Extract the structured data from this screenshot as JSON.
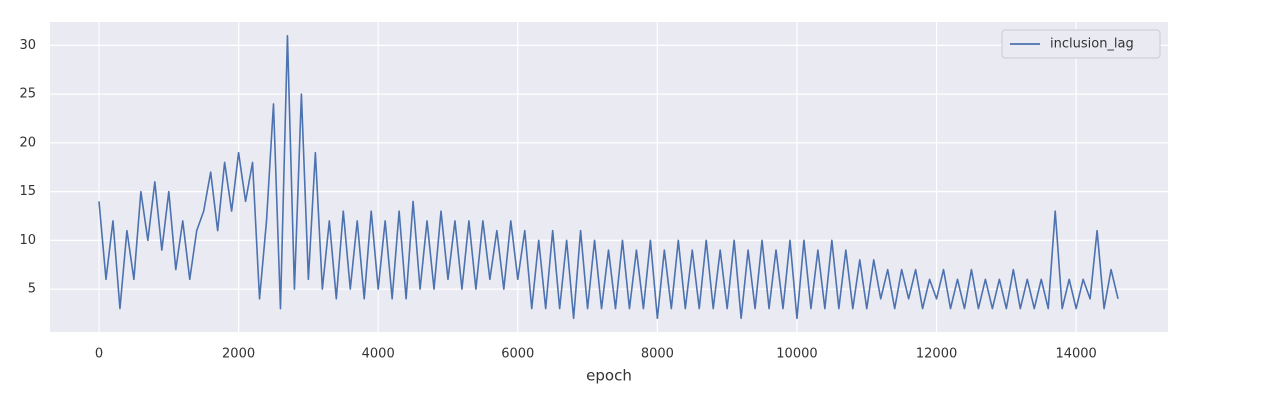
{
  "chart_data": {
    "type": "line",
    "x_label": "epoch",
    "x": [
      0,
      100,
      200,
      300,
      400,
      500,
      600,
      700,
      800,
      900,
      1000,
      1100,
      1200,
      1300,
      1400,
      1500,
      1600,
      1700,
      1800,
      1900,
      2000,
      2100,
      2200,
      2300,
      2400,
      2500,
      2600,
      2700,
      2800,
      2900,
      3000,
      3100,
      3200,
      3300,
      3400,
      3500,
      3600,
      3700,
      3800,
      3900,
      4000,
      4100,
      4200,
      4300,
      4400,
      4500,
      4600,
      4700,
      4800,
      4900,
      5000,
      5100,
      5200,
      5300,
      5400,
      5500,
      5600,
      5700,
      5800,
      5900,
      6000,
      6100,
      6200,
      6300,
      6400,
      6500,
      6600,
      6700,
      6800,
      6900,
      7000,
      7100,
      7200,
      7300,
      7400,
      7500,
      7600,
      7700,
      7800,
      7900,
      8000,
      8100,
      8200,
      8300,
      8400,
      8500,
      8600,
      8700,
      8800,
      8900,
      9000,
      9100,
      9200,
      9300,
      9400,
      9500,
      9600,
      9700,
      9800,
      9900,
      10000,
      10100,
      10200,
      10300,
      10400,
      10500,
      10600,
      10700,
      10800,
      10900,
      11000,
      11100,
      11200,
      11300,
      11400,
      11500,
      11600,
      11700,
      11800,
      11900,
      12000,
      12100,
      12200,
      12300,
      12400,
      12500,
      12600,
      12700,
      12800,
      12900,
      13000,
      13100,
      13200,
      13300,
      13400,
      13500,
      13600,
      13700,
      13800,
      13900,
      14000,
      14100,
      14200,
      14300,
      14400,
      14500,
      14600
    ],
    "series": [
      {
        "name": "inclusion_lag",
        "color": "#4c72b0",
        "values": [
          14,
          6,
          12,
          3,
          11,
          6,
          15,
          10,
          16,
          9,
          15,
          7,
          12,
          6,
          11,
          13,
          17,
          11,
          18,
          13,
          19,
          14,
          18,
          4,
          12,
          24,
          3,
          31,
          5,
          25,
          6,
          19,
          5,
          12,
          4,
          13,
          5,
          12,
          4,
          13,
          5,
          12,
          4,
          13,
          4,
          14,
          5,
          12,
          5,
          13,
          6,
          12,
          5,
          12,
          5,
          12,
          6,
          11,
          5,
          12,
          6,
          11,
          3,
          10,
          3,
          11,
          3,
          10,
          2,
          11,
          3,
          10,
          3,
          9,
          3,
          10,
          3,
          9,
          3,
          10,
          2,
          9,
          3,
          10,
          3,
          9,
          3,
          10,
          3,
          9,
          3,
          10,
          2,
          9,
          3,
          10,
          3,
          9,
          3,
          10,
          2,
          10,
          3,
          9,
          3,
          10,
          3,
          9,
          3,
          8,
          3,
          8,
          4,
          7,
          3,
          7,
          4,
          7,
          3,
          6,
          4,
          7,
          3,
          6,
          3,
          7,
          3,
          6,
          3,
          6,
          3,
          7,
          3,
          6,
          3,
          6,
          3,
          13,
          3,
          6,
          3,
          6,
          4,
          11,
          3,
          7,
          4
        ]
      }
    ],
    "xlim": [
      -702,
      15316
    ],
    "ylim": [
      0.6,
      32.4
    ],
    "xticks": [
      0,
      2000,
      4000,
      6000,
      8000,
      10000,
      12000,
      14000
    ],
    "yticks": [
      5,
      10,
      15,
      20,
      25,
      30
    ],
    "grid": true,
    "legend": "upper right"
  }
}
